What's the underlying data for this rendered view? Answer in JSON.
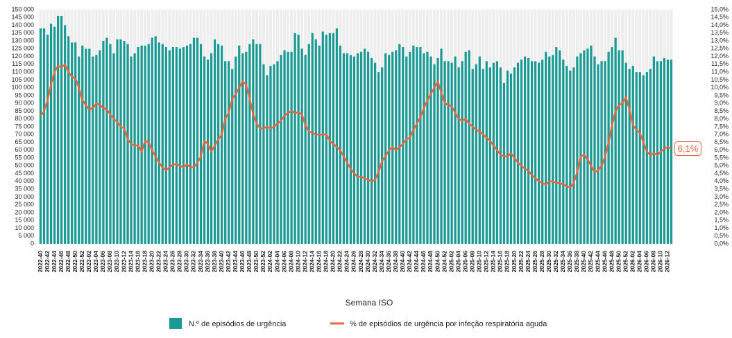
{
  "chart_data": {
    "type": "bar_line",
    "x_label": "Semana ISO",
    "categories": [
      "2022-40",
      null,
      "2022-42",
      null,
      "2022-44",
      null,
      "2022-46",
      null,
      "2022-48",
      null,
      "2022-50",
      null,
      "2022-52",
      null,
      "2023-02",
      null,
      "2023-04",
      null,
      "2023-06",
      null,
      "2023-08",
      null,
      "2023-10",
      null,
      "2023-12",
      null,
      "2023-14",
      null,
      "2023-16",
      null,
      "2023-18",
      null,
      "2023-20",
      null,
      "2023-22",
      null,
      "2023-24",
      null,
      "2023-26",
      null,
      "2023-28",
      null,
      "2023-30",
      null,
      "2023-32",
      null,
      "2023-34",
      null,
      "2023-36",
      null,
      "2023-38",
      null,
      "2023-40",
      null,
      "2023-42",
      null,
      "2023-44",
      null,
      "2023-46",
      null,
      "2023-48",
      null,
      "2023-50",
      null,
      "2023-52",
      null,
      "2024-02",
      null,
      "2024-04",
      null,
      "2024-06",
      null,
      "2024-08",
      null,
      "2024-10",
      null,
      "2024-12",
      null,
      "2024-14",
      null,
      "2024-16",
      null,
      "2024-18",
      null,
      "2024-20",
      null,
      "2024-22",
      null,
      "2024-24",
      null,
      "2024-26",
      null,
      "2024-28",
      null,
      "2024-30",
      null,
      "2024-32",
      null,
      "2024-34",
      null,
      "2024-36",
      null,
      "2024-38",
      null,
      "2024-40",
      null,
      "2024-42",
      null,
      "2024-44",
      null,
      "2024-46",
      null,
      "2024-48",
      null,
      "2024-50",
      null,
      "2024-52",
      null,
      "2025-02",
      null,
      "2025-04",
      null,
      "2025-06",
      null,
      "2025-08",
      null,
      "2025-10",
      null,
      "2025-12",
      null,
      "2025-14",
      null,
      "2025-16",
      null,
      "2025-18",
      null,
      "2025-20",
      null,
      "2025-22",
      null,
      "2025-24",
      null,
      "2025-26",
      null,
      "2025-28",
      null,
      "2025-30",
      null,
      "2025-32",
      null,
      "2025-34",
      null,
      "2025-36",
      null,
      "2025-38",
      null,
      "2025-40",
      null,
      "2025-42",
      null,
      "2025-44",
      null,
      "2025-46",
      null,
      "2025-48",
      null,
      "2025-50",
      null,
      "2025-52",
      null,
      "2026-02",
      null,
      "2026-04",
      null,
      "2026-06",
      null,
      "2026-08",
      null,
      "2026-10",
      null,
      "2026-12",
      null
    ],
    "series": [
      {
        "name": "N.º de episódios de urgência",
        "color": "#1a9a95",
        "axis": "y",
        "values": [
          138000,
          138000,
          134000,
          141000,
          139000,
          146000,
          146000,
          140000,
          133000,
          129000,
          129000,
          120000,
          127000,
          125000,
          125000,
          120000,
          121000,
          124000,
          130000,
          132000,
          128000,
          122000,
          131000,
          131000,
          130000,
          128000,
          120000,
          122000,
          126000,
          127000,
          127000,
          128000,
          132000,
          133000,
          129000,
          128000,
          126000,
          124000,
          126000,
          126000,
          125000,
          126000,
          127000,
          128000,
          132000,
          132000,
          128000,
          120000,
          118000,
          122000,
          131000,
          128000,
          127000,
          117000,
          117000,
          112000,
          120000,
          127000,
          122000,
          123000,
          128000,
          131000,
          128000,
          128000,
          115000,
          108000,
          114000,
          115000,
          117000,
          121000,
          124000,
          123000,
          123000,
          135000,
          134000,
          125000,
          121000,
          128000,
          135000,
          131000,
          127000,
          136000,
          134000,
          135000,
          135000,
          138000,
          127000,
          122000,
          122000,
          121000,
          120000,
          122000,
          123000,
          125000,
          123000,
          119000,
          116000,
          110000,
          113000,
          122000,
          121000,
          123000,
          124000,
          128000,
          126000,
          120000,
          123000,
          127000,
          126000,
          126000,
          122000,
          123000,
          120000,
          115000,
          119000,
          125000,
          117000,
          117000,
          116000,
          120000,
          113000,
          117000,
          123000,
          124000,
          112000,
          115000,
          120000,
          112000,
          117000,
          113000,
          116000,
          117000,
          113000,
          103000,
          111000,
          109000,
          113000,
          116000,
          118000,
          120000,
          119000,
          117000,
          117000,
          116000,
          118000,
          123000,
          120000,
          121000,
          126000,
          124000,
          118000,
          114000,
          111000,
          113000,
          120000,
          122000,
          124000,
          125000,
          127000,
          120000,
          115000,
          117000,
          117000,
          123000,
          126000,
          132000,
          124000,
          124000,
          116000,
          112000,
          114000,
          110000,
          110000,
          108000,
          110000,
          112000,
          120000,
          117000,
          117000,
          119000,
          118000,
          118000
        ]
      },
      {
        "name": "% de episódios de urgência por infeção respiratória aguda",
        "color": "#f0643c",
        "axis": "y2",
        "values": [
          8.2,
          8.5,
          9.2,
          10.2,
          11.0,
          11.4,
          11.3,
          11.5,
          11.0,
          10.7,
          10.6,
          10.0,
          9.2,
          8.9,
          8.6,
          8.7,
          9.0,
          8.9,
          8.7,
          8.6,
          8.3,
          8.0,
          7.8,
          7.5,
          7.4,
          6.7,
          6.4,
          6.3,
          6.3,
          5.9,
          6.6,
          6.5,
          6.0,
          5.6,
          5.2,
          4.9,
          4.7,
          4.9,
          5.1,
          5.1,
          5.0,
          4.9,
          5.1,
          4.9,
          4.9,
          5.2,
          5.6,
          6.6,
          6.4,
          5.9,
          6.3,
          6.7,
          7.0,
          8.0,
          8.4,
          9.3,
          9.6,
          10.0,
          10.4,
          10.2,
          9.3,
          8.3,
          7.7,
          7.4,
          7.4,
          7.5,
          7.4,
          7.5,
          7.7,
          7.9,
          8.2,
          8.4,
          8.5,
          8.4,
          8.4,
          8.3,
          7.6,
          7.2,
          7.1,
          7.0,
          7.0,
          7.0,
          7.0,
          6.6,
          6.4,
          6.2,
          6.0,
          5.6,
          5.2,
          4.8,
          4.5,
          4.3,
          4.3,
          4.2,
          4.1,
          4.0,
          4.1,
          4.6,
          5.3,
          5.6,
          6.0,
          6.2,
          6.0,
          6.2,
          6.4,
          6.7,
          6.8,
          7.3,
          7.7,
          8.1,
          8.7,
          9.2,
          9.6,
          10.0,
          10.4,
          9.7,
          9.0,
          8.9,
          8.8,
          8.4,
          8.0,
          7.9,
          8.0,
          7.7,
          7.5,
          7.3,
          7.2,
          7.0,
          6.8,
          6.6,
          6.3,
          6.0,
          5.7,
          5.6,
          5.6,
          5.8,
          5.5,
          5.2,
          5.0,
          4.8,
          4.7,
          4.4,
          4.2,
          4.0,
          3.9,
          3.8,
          4.0,
          4.0,
          3.9,
          3.9,
          3.8,
          3.7,
          3.6,
          3.9,
          4.6,
          5.6,
          5.7,
          5.4,
          5.0,
          4.6,
          4.7,
          5.0,
          5.6,
          6.5,
          7.6,
          8.5,
          8.9,
          9.0,
          9.4,
          8.6,
          7.6,
          7.3,
          7.1,
          6.5,
          5.9,
          5.7,
          5.8,
          5.7,
          5.9,
          6.1,
          6.2,
          6.1
        ],
        "value_labels": [
          null,
          null,
          null,
          null,
          null,
          null,
          null,
          null,
          null,
          null,
          null,
          null,
          null,
          null,
          null,
          null,
          null,
          null,
          null,
          null,
          null,
          null,
          null,
          null,
          null,
          null,
          null,
          null,
          null,
          null,
          null,
          null,
          null,
          null,
          null,
          null,
          null,
          null,
          null,
          null,
          null,
          null,
          null,
          null,
          null,
          null,
          null,
          null,
          null,
          null,
          null,
          null,
          null,
          null,
          null,
          null,
          null,
          null,
          null,
          null,
          null,
          null,
          null,
          null,
          null,
          null,
          null,
          null,
          null,
          null,
          null,
          null,
          null,
          null,
          null,
          null,
          null,
          null,
          null,
          null,
          null,
          null,
          null,
          null,
          null,
          null,
          null,
          null,
          null,
          null,
          null,
          null,
          null,
          null,
          null,
          null,
          null,
          null,
          null,
          null,
          null,
          null,
          null,
          null,
          null,
          null,
          null,
          null,
          null,
          null,
          null,
          null,
          null,
          null,
          null,
          null,
          null,
          null,
          null,
          null,
          null,
          null,
          null,
          null,
          null,
          null,
          null,
          null,
          null,
          null,
          null,
          null,
          null,
          null,
          null,
          null,
          null,
          null,
          null,
          null,
          null,
          null,
          null,
          null,
          null,
          null,
          null,
          null,
          null,
          null,
          null,
          null,
          null,
          null,
          null,
          null,
          null,
          null,
          null,
          null,
          null,
          null,
          null,
          null,
          null,
          null,
          null,
          null,
          null,
          null,
          null,
          null,
          null,
          null,
          null,
          null,
          null,
          null,
          null,
          null,
          null,
          "6,1%"
        ]
      }
    ],
    "ylim": [
      0,
      150000
    ],
    "yticks": [
      0,
      {
        "value": 5000,
        "label": "5 000"
      },
      {
        "value": 10000,
        "label": "10 000"
      },
      {
        "value": 15000,
        "label": "15 000"
      },
      {
        "value": 20000,
        "label": "20 000"
      },
      {
        "value": 25000,
        "label": "25 000"
      },
      {
        "value": 30000,
        "label": "30 000"
      },
      {
        "value": 35000,
        "label": "35 000"
      },
      {
        "value": 40000,
        "label": "40 000"
      },
      {
        "value": 45000,
        "label": "45 000"
      },
      {
        "value": 50000,
        "label": "50 000"
      },
      {
        "value": 55000,
        "label": "55 000"
      },
      {
        "value": 60000,
        "label": "60 000"
      },
      {
        "value": 65000,
        "label": "65 000"
      },
      {
        "value": 70000,
        "label": "70 000"
      },
      {
        "value": 75000,
        "label": "75 000"
      },
      {
        "value": 80000,
        "label": "80 000"
      },
      {
        "value": 85000,
        "label": "85 000"
      },
      {
        "value": 90000,
        "label": "90 000"
      },
      {
        "value": 95000,
        "label": "95 000"
      },
      {
        "value": 100000,
        "label": "100 000"
      },
      {
        "value": 105000,
        "label": "105 000"
      },
      {
        "value": 110000,
        "label": "110 000"
      },
      {
        "value": 115000,
        "label": "115 000"
      },
      {
        "value": 120000,
        "label": "120 000"
      },
      {
        "value": 125000,
        "label": "125 000"
      },
      {
        "value": 130000,
        "label": "130 000"
      },
      {
        "value": 135000,
        "label": "135 000"
      },
      {
        "value": 140000,
        "label": "140 000"
      },
      {
        "value": 145000,
        "label": "145 000"
      },
      {
        "value": 150000,
        "label": "150 000"
      }
    ],
    "y2lim": [
      0,
      15
    ],
    "y2ticks": [
      {
        "value": 0,
        "label": "0,0%"
      },
      {
        "value": 0.5,
        "label": "0,5%"
      },
      {
        "value": 1,
        "label": "1,0%"
      },
      {
        "value": 1.5,
        "label": "1,5%"
      },
      {
        "value": 2,
        "label": "2,0%"
      },
      {
        "value": 2.5,
        "label": "2,5%"
      },
      {
        "value": 3,
        "label": "3,0%"
      },
      {
        "value": 3.5,
        "label": "3,5%"
      },
      {
        "value": 4,
        "label": "4,0%"
      },
      {
        "value": 4.5,
        "label": "4,5%"
      },
      {
        "value": 5,
        "label": "5,0%"
      },
      {
        "value": 5.5,
        "label": "5,5%"
      },
      {
        "value": 6,
        "label": "6,0%"
      },
      {
        "value": 6.5,
        "label": "6,5%"
      },
      {
        "value": 7,
        "label": "7,0%"
      },
      {
        "value": 7.5,
        "label": "7,5%"
      },
      {
        "value": 8,
        "label": "8,0%"
      },
      {
        "value": 8.5,
        "label": "8,5%"
      },
      {
        "value": 9,
        "label": "9,0%"
      },
      {
        "value": 9.5,
        "label": "9,5%"
      },
      {
        "value": 10,
        "label": "10,0%"
      },
      {
        "value": 10.5,
        "label": "10,5%"
      },
      {
        "value": 11,
        "label": "11,0%"
      },
      {
        "value": 11.5,
        "label": "11,5%"
      },
      {
        "value": 12,
        "label": "12,0%"
      },
      {
        "value": 12.5,
        "label": "12,5%"
      },
      {
        "value": 13,
        "label": "13,0%"
      },
      {
        "value": 13.5,
        "label": "13,5%"
      },
      {
        "value": 14,
        "label": "14,0%"
      },
      {
        "value": 14.5,
        "label": "14,5%"
      },
      {
        "value": 15,
        "label": "15,0%"
      }
    ],
    "grid": false,
    "legend": "bottom"
  }
}
